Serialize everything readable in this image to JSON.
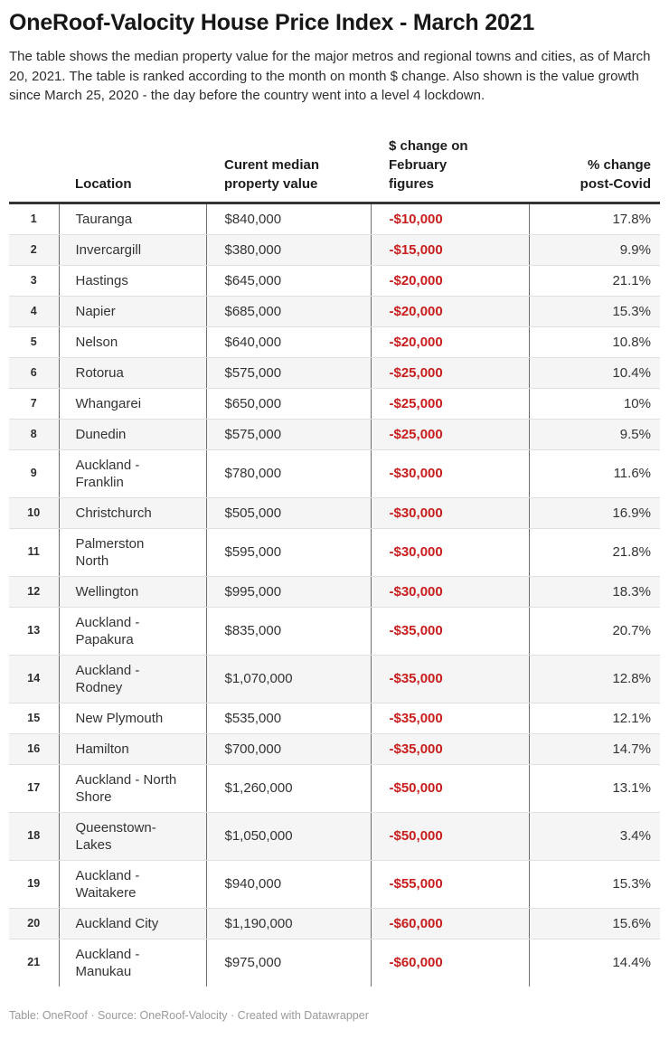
{
  "header": {
    "title": "OneRoof-Valocity House Price Index - March 2021",
    "description": "The table shows the median property value for the major metros and regional towns and cities, as of March 20, 2021. The table is ranked according to the month on month $ change. Also shown is the value growth since March 25, 2020 - the day before the country went into a level 4 lockdown."
  },
  "colors": {
    "negative_change_red": "#c71e1d",
    "zebra_stripe": "#f5f5f5",
    "header_rule": "#333333",
    "column_divider": "#6f6f6f",
    "row_divider": "#e0e0e0",
    "footer_gray": "#9a9a9a"
  },
  "chart_data": {
    "type": "table",
    "title": "OneRoof-Valocity House Price Index - March 2021",
    "column_headers": {
      "rank": "",
      "location": "Location",
      "median_value": "Curent median\nproperty value",
      "dollar_change": "$ change on\nFebruary\nfigures",
      "pct_change": "% change\npost-Covid"
    },
    "rows": [
      {
        "rank": "1",
        "location": "Tauranga",
        "value": "$840,000",
        "change": "-$10,000",
        "pct": "17.8%"
      },
      {
        "rank": "2",
        "location": "Invercargill",
        "value": "$380,000",
        "change": "-$15,000",
        "pct": "9.9%"
      },
      {
        "rank": "3",
        "location": "Hastings",
        "value": "$645,000",
        "change": "-$20,000",
        "pct": "21.1%"
      },
      {
        "rank": "4",
        "location": "Napier",
        "value": "$685,000",
        "change": "-$20,000",
        "pct": "15.3%"
      },
      {
        "rank": "5",
        "location": "Nelson",
        "value": "$640,000",
        "change": "-$20,000",
        "pct": "10.8%"
      },
      {
        "rank": "6",
        "location": "Rotorua",
        "value": "$575,000",
        "change": "-$25,000",
        "pct": "10.4%"
      },
      {
        "rank": "7",
        "location": "Whangarei",
        "value": "$650,000",
        "change": "-$25,000",
        "pct": "10%"
      },
      {
        "rank": "8",
        "location": "Dunedin",
        "value": "$575,000",
        "change": "-$25,000",
        "pct": "9.5%"
      },
      {
        "rank": "9",
        "location": "Auckland -\nFranklin",
        "value": "$780,000",
        "change": "-$30,000",
        "pct": "11.6%"
      },
      {
        "rank": "10",
        "location": "Christchurch",
        "value": "$505,000",
        "change": "-$30,000",
        "pct": "16.9%"
      },
      {
        "rank": "11",
        "location": "Palmerston\nNorth",
        "value": "$595,000",
        "change": "-$30,000",
        "pct": "21.8%"
      },
      {
        "rank": "12",
        "location": "Wellington",
        "value": "$995,000",
        "change": "-$30,000",
        "pct": "18.3%"
      },
      {
        "rank": "13",
        "location": "Auckland -\nPapakura",
        "value": "$835,000",
        "change": "-$35,000",
        "pct": "20.7%"
      },
      {
        "rank": "14",
        "location": "Auckland -\nRodney",
        "value": "$1,070,000",
        "change": "-$35,000",
        "pct": "12.8%"
      },
      {
        "rank": "15",
        "location": "New Plymouth",
        "value": "$535,000",
        "change": "-$35,000",
        "pct": "12.1%"
      },
      {
        "rank": "16",
        "location": "Hamilton",
        "value": "$700,000",
        "change": "-$35,000",
        "pct": "14.7%"
      },
      {
        "rank": "17",
        "location": "Auckland - North\nShore",
        "value": "$1,260,000",
        "change": "-$50,000",
        "pct": "13.1%"
      },
      {
        "rank": "18",
        "location": "Queenstown-\nLakes",
        "value": "$1,050,000",
        "change": "-$50,000",
        "pct": "3.4%"
      },
      {
        "rank": "19",
        "location": "Auckland -\nWaitakere",
        "value": "$940,000",
        "change": "-$55,000",
        "pct": "15.3%"
      },
      {
        "rank": "20",
        "location": "Auckland City",
        "value": "$1,190,000",
        "change": "-$60,000",
        "pct": "15.6%"
      },
      {
        "rank": "21",
        "location": "Auckland -\nManukau",
        "value": "$975,000",
        "change": "-$60,000",
        "pct": "14.4%"
      }
    ]
  },
  "footer": {
    "text": "Table: OneRoof · Source: OneRoof-Valocity · Created with Datawrapper"
  }
}
